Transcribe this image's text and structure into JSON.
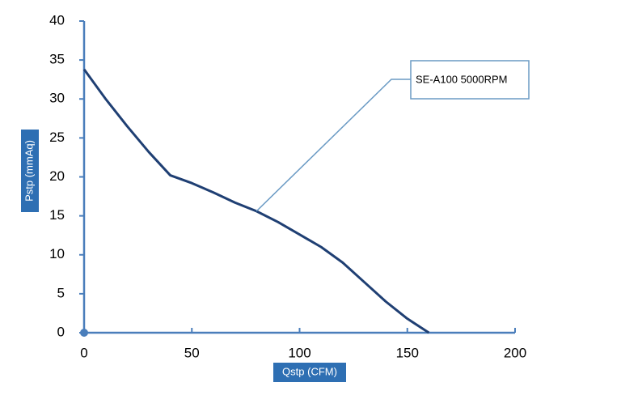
{
  "chart_data": {
    "type": "line",
    "x_label": "Qstp (CFM)",
    "y_label": "Pstp (mmAq)",
    "x": [
      0,
      10,
      20,
      30,
      40,
      50,
      60,
      70,
      80,
      90,
      100,
      110,
      120,
      130,
      140,
      150,
      160
    ],
    "series": [
      {
        "name": "SE-A100  5000RPM",
        "color": "#1f3f73",
        "values": [
          33.8,
          30,
          26.5,
          23.2,
          20.2,
          19.2,
          18,
          16.7,
          15.6,
          14.2,
          12.6,
          11,
          9,
          6.5,
          4,
          1.8,
          0
        ]
      }
    ],
    "xlim": [
      0,
      200
    ],
    "xticks": [
      0,
      50,
      100,
      150,
      200
    ],
    "ylim": [
      0,
      40
    ],
    "yticks": [
      0,
      5,
      10,
      15,
      20,
      25,
      30,
      35,
      40
    ],
    "axis_color": "#4a7ebb"
  }
}
